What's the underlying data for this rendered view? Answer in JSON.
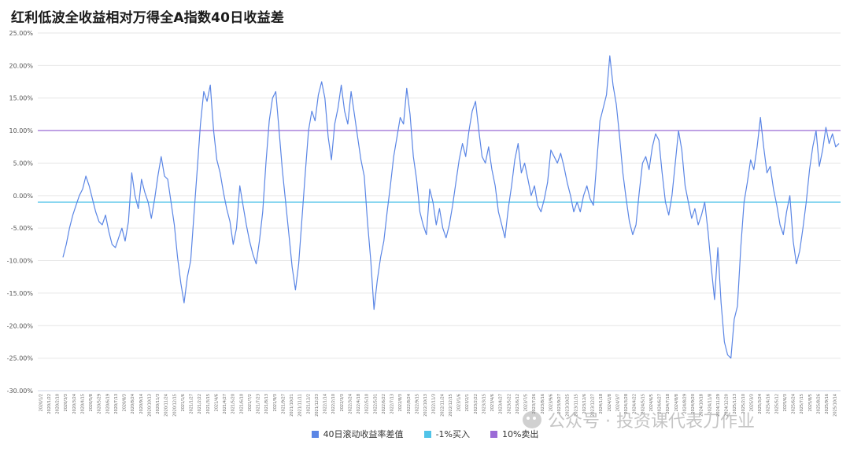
{
  "page": {
    "title": "红利低波全收益相对万得全A指数40日收益差"
  },
  "watermark": {
    "text": "公众号 · 投资课代表刀作业",
    "icon": "wechat-icon"
  },
  "chart_data": {
    "type": "line",
    "title": "红利低波全收益相对万得全A指数40日收益差",
    "ylim": [
      -30,
      25
    ],
    "yticks": [
      25,
      20,
      15,
      10,
      5,
      0,
      -5,
      -10,
      -15,
      -20,
      -25,
      -30
    ],
    "ytick_labels": [
      "25.00%",
      "20.00%",
      "15.00%",
      "10.00%",
      "5.00%",
      "0.00%",
      "-5.00%",
      "-10.00%",
      "-15.00%",
      "-20.00%",
      "-25.00%",
      "-30.00%"
    ],
    "grid": true,
    "legend_position": "bottom-center",
    "x_labels": [
      "2020/1/2",
      "2020/1/22",
      "2020/2/10",
      "2020/3/3",
      "2020/3/24",
      "2020/4/15",
      "2020/5/8",
      "2020/5/29",
      "2020/6/19",
      "2020/7/13",
      "2020/8/3",
      "2020/8/24",
      "2020/9/14",
      "2020/10/13",
      "2020/11/3",
      "2020/11/24",
      "2020/12/15",
      "2021/1/6",
      "2021/1/27",
      "2021/2/22",
      "2021/3/15",
      "2021/4/6",
      "2021/4/27",
      "2021/5/20",
      "2021/6/10",
      "2021/7/2",
      "2021/7/23",
      "2021/8/13",
      "2021/9/3",
      "2021/9/27",
      "2021/10/21",
      "2021/11/11",
      "2021/12/2",
      "2021/12/23",
      "2022/1/14",
      "2022/2/10",
      "2022/3/3",
      "2022/3/24",
      "2022/4/18",
      "2022/5/10",
      "2022/5/31",
      "2022/6/22",
      "2022/7/13",
      "2022/8/3",
      "2022/8/24",
      "2022/9/15",
      "2022/10/13",
      "2022/11/3",
      "2022/11/24",
      "2022/12/15",
      "2023/1/6",
      "2023/2/1",
      "2023/2/22",
      "2023/3/15",
      "2023/4/6",
      "2023/4/27",
      "2023/5/22",
      "2023/6/12",
      "2023/7/5",
      "2023/7/26",
      "2023/8/16",
      "2023/9/6",
      "2023/9/27",
      "2023/10/25",
      "2023/11/15",
      "2023/12/6",
      "2023/12/27",
      "2024/1/18",
      "2024/2/8",
      "2024/3/7",
      "2024/3/28",
      "2024/4/22",
      "2024/5/15",
      "2024/6/5",
      "2024/6/27",
      "2024/7/18",
      "2024/8/8",
      "2024/8/29",
      "2024/9/20",
      "2024/10/18",
      "2024/11/8",
      "2024/11/29",
      "2024/12/20",
      "2025/1/13",
      "2025/2/10",
      "2025/3/3",
      "2025/3/24",
      "2025/4/16",
      "2025/5/12",
      "2025/6/3",
      "2025/6/24",
      "2025/7/15",
      "2025/8/5",
      "2025/8/26",
      "2025/9/16",
      "2025/10/14"
    ],
    "series": [
      {
        "name": "40日滚动收益率差值",
        "color": "#5b86e5",
        "values": [
          -9.5,
          -7.5,
          -5.0,
          -3.0,
          -1.5,
          0.0,
          1.0,
          3.0,
          1.5,
          -0.5,
          -2.5,
          -4.0,
          -4.5,
          -3.0,
          -5.5,
          -7.5,
          -8.0,
          -6.5,
          -5.0,
          -7.0,
          -4.0,
          3.5,
          0.0,
          -2.0,
          2.5,
          0.5,
          -1.0,
          -3.5,
          -0.5,
          3.0,
          6.0,
          3.0,
          2.5,
          -1.0,
          -4.5,
          -9.5,
          -13.5,
          -16.5,
          -12.5,
          -10.0,
          -3.0,
          4.0,
          11.0,
          16.0,
          14.5,
          17.0,
          10.0,
          5.5,
          3.5,
          0.5,
          -2.0,
          -4.0,
          -7.5,
          -5.0,
          1.5,
          -1.5,
          -4.5,
          -7.0,
          -9.0,
          -10.5,
          -7.0,
          -2.5,
          5.0,
          11.5,
          15.0,
          16.0,
          10.0,
          4.0,
          -1.0,
          -6.0,
          -11.0,
          -14.5,
          -10.5,
          -3.5,
          3.5,
          10.0,
          13.0,
          11.5,
          15.5,
          17.5,
          15.0,
          9.0,
          5.5,
          11.0,
          13.5,
          17.0,
          13.0,
          11.0,
          16.0,
          12.5,
          9.0,
          5.5,
          3.0,
          -4.0,
          -10.0,
          -17.5,
          -13.0,
          -9.5,
          -7.0,
          -2.5,
          1.5,
          6.0,
          9.0,
          12.0,
          11.0,
          16.5,
          12.5,
          6.0,
          2.5,
          -2.5,
          -4.5,
          -6.0,
          1.0,
          -1.0,
          -4.5,
          -2.0,
          -5.0,
          -6.5,
          -4.5,
          -1.5,
          2.0,
          5.5,
          8.0,
          6.0,
          10.0,
          13.0,
          14.5,
          10.0,
          6.0,
          5.0,
          7.5,
          4.0,
          1.5,
          -2.5,
          -4.5,
          -6.5,
          -2.0,
          1.5,
          5.5,
          8.0,
          3.5,
          5.0,
          2.5,
          0.0,
          1.5,
          -1.5,
          -2.5,
          -0.5,
          2.0,
          7.0,
          6.0,
          5.0,
          6.5,
          4.5,
          2.0,
          0.0,
          -2.5,
          -1.0,
          -2.5,
          0.0,
          1.5,
          -0.5,
          -1.5,
          5.0,
          11.5,
          13.5,
          15.5,
          21.5,
          17.0,
          14.0,
          9.0,
          3.5,
          -0.5,
          -4.0,
          -6.0,
          -4.5,
          0.5,
          5.0,
          6.0,
          4.0,
          7.5,
          9.5,
          8.5,
          3.5,
          -1.0,
          -3.0,
          0.0,
          5.0,
          10.0,
          7.0,
          1.5,
          -1.0,
          -3.5,
          -2.0,
          -4.5,
          -3.0,
          -1.0,
          -5.5,
          -11.0,
          -16.0,
          -8.0,
          -16.5,
          -22.5,
          -24.5,
          -25.0,
          -19.0,
          -17.0,
          -8.0,
          -1.0,
          2.0,
          5.5,
          4.0,
          7.5,
          12.0,
          7.5,
          3.5,
          4.5,
          1.0,
          -1.5,
          -4.5,
          -6.0,
          -2.5,
          0.0,
          -7.0,
          -10.5,
          -8.5,
          -5.0,
          -1.0,
          4.0,
          7.5,
          10.0,
          4.5,
          7.0,
          10.5,
          8.0,
          9.5,
          7.5,
          8.0
        ]
      },
      {
        "name": "-1%买入",
        "color": "#50c3e8",
        "y": -1
      },
      {
        "name": "10%卖出",
        "color": "#9b6bd6",
        "y": 10
      }
    ]
  }
}
